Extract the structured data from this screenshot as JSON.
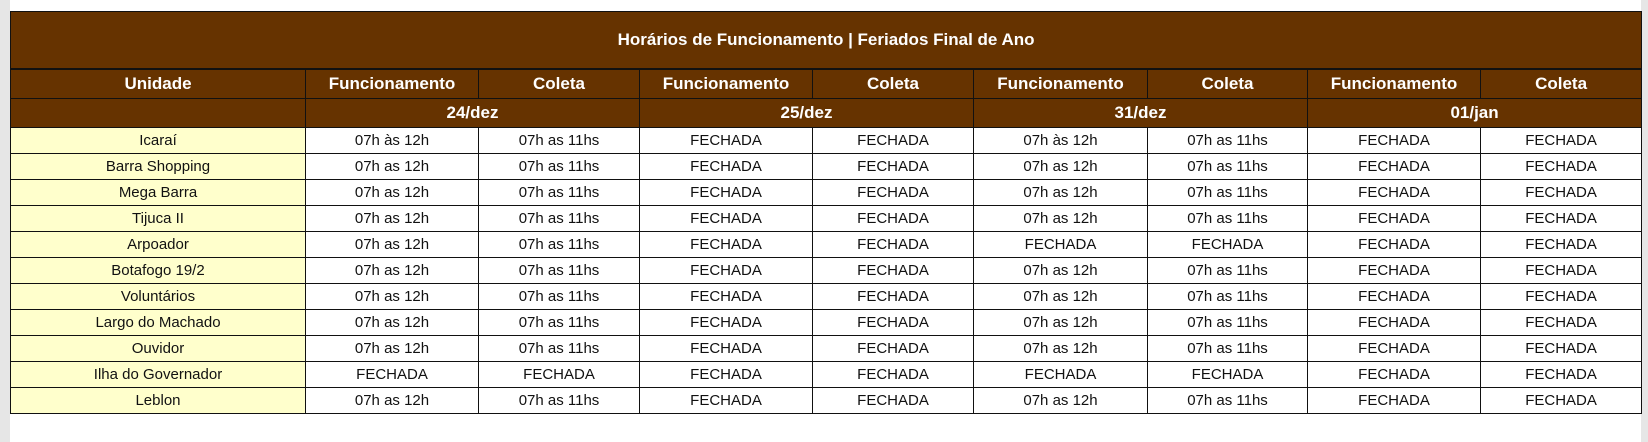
{
  "title": "Horários de Funcionamento | Feriados Final de Ano",
  "headers": [
    "Unidade",
    "Funcionamento",
    "Coleta",
    "Funcionamento",
    "Coleta",
    "Funcionamento",
    "Coleta",
    "Funcionamento",
    "Coleta"
  ],
  "dates": [
    "24/dez",
    "25/dez",
    "31/dez",
    "01/jan"
  ],
  "colors": {
    "header_bg": "#663300",
    "unit_bg": "#ffffcc"
  },
  "rows": [
    [
      "Icaraí",
      "07h às 12h",
      "07h as 11hs",
      "FECHADA",
      "FECHADA",
      "07h às 12h",
      "07h as 11hs",
      "FECHADA",
      "FECHADA"
    ],
    [
      "Barra Shopping",
      "07h as 12h",
      "07h as 11hs",
      "FECHADA",
      "FECHADA",
      "07h as 12h",
      "07h as 11hs",
      "FECHADA",
      "FECHADA"
    ],
    [
      "Mega Barra",
      "07h as 12h",
      "07h as 11hs",
      "FECHADA",
      "FECHADA",
      "07h as 12h",
      "07h as 11hs",
      "FECHADA",
      "FECHADA"
    ],
    [
      "Tijuca II",
      "07h as 12h",
      "07h as 11hs",
      "FECHADA",
      "FECHADA",
      "07h as 12h",
      "07h as 11hs",
      "FECHADA",
      "FECHADA"
    ],
    [
      "Arpoador",
      "07h as 12h",
      "07h as 11hs",
      "FECHADA",
      "FECHADA",
      "FECHADA",
      "FECHADA",
      "FECHADA",
      "FECHADA"
    ],
    [
      "Botafogo 19/2",
      "07h as 12h",
      "07h as 11hs",
      "FECHADA",
      "FECHADA",
      "07h as 12h",
      "07h as 11hs",
      "FECHADA",
      "FECHADA"
    ],
    [
      "Voluntários",
      "07h as 12h",
      "07h as 11hs",
      "FECHADA",
      "FECHADA",
      "07h as 12h",
      "07h as 11hs",
      "FECHADA",
      "FECHADA"
    ],
    [
      "Largo do Machado",
      "07h as 12h",
      "07h as 11hs",
      "FECHADA",
      "FECHADA",
      "07h as 12h",
      "07h as 11hs",
      "FECHADA",
      "FECHADA"
    ],
    [
      "Ouvidor",
      "07h as 12h",
      "07h as 11hs",
      "FECHADA",
      "FECHADA",
      "07h as 12h",
      "07h as 11hs",
      "FECHADA",
      "FECHADA"
    ],
    [
      "Ilha do Governador",
      "FECHADA",
      "FECHADA",
      "FECHADA",
      "FECHADA",
      "FECHADA",
      "FECHADA",
      "FECHADA",
      "FECHADA"
    ],
    [
      "Leblon",
      "07h as 12h",
      "07h as 11hs",
      "FECHADA",
      "FECHADA",
      "07h as 12h",
      "07h as 11hs",
      "FECHADA",
      "FECHADA"
    ]
  ]
}
